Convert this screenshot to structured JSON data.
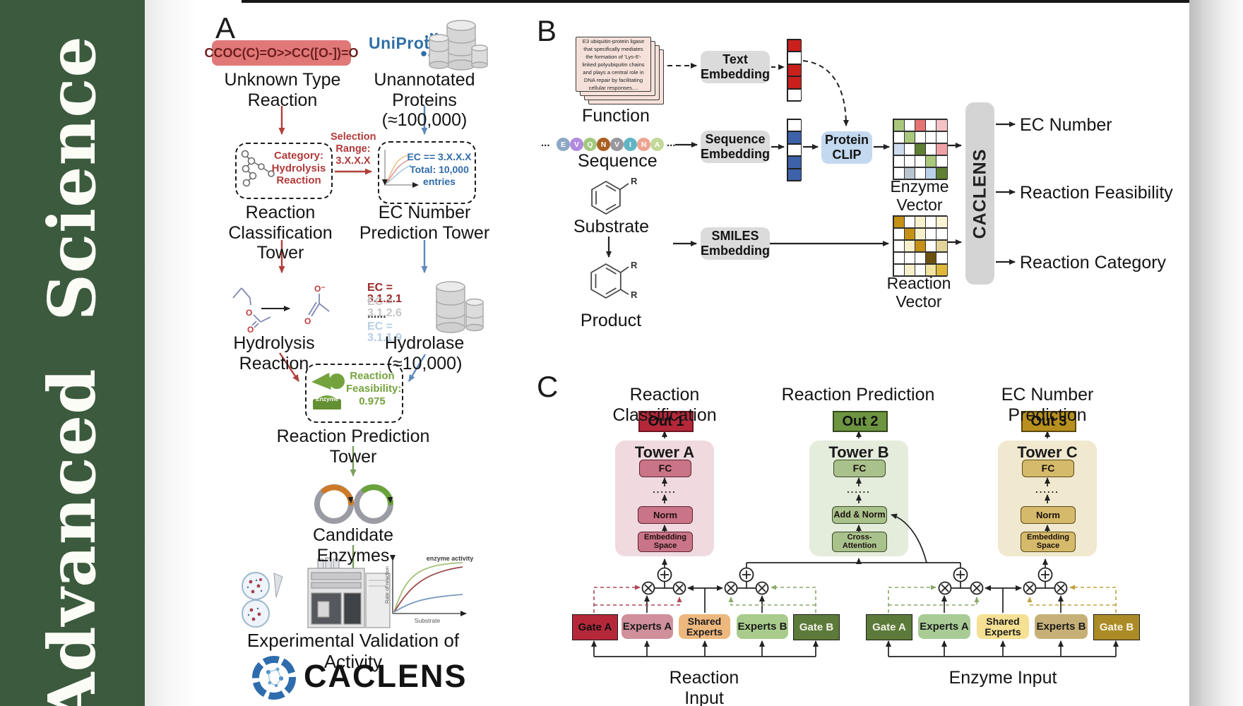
{
  "journal": "Advanced  Science",
  "palette": {
    "sidebarGreen": "#3b5a3e",
    "smilesBox": "#e17878",
    "embedGray": "#dbdbdb",
    "clipBlue": "#c3d9f0",
    "caclensBar": "#d4d4d4",
    "outRed": "#b5283a",
    "outGreen": "#6d9441",
    "outGold": "#b8901f",
    "towerABg": "#f0dadf",
    "towerAInner": "#ca7487",
    "towerBBg": "#e4ecdb",
    "towerBInner": "#a9c28c",
    "towerCBg": "#f0e9cf",
    "towerCInner": "#d4ba6a",
    "gateARed": "#b5283a",
    "expertsARose": "#cf8f9b",
    "sharedOrange": "#edb87e",
    "expertsBGreen": "#a9cc8c",
    "gateBGreen": "#5c7a3a",
    "gateAGreen": "#5c7a3a",
    "expertsAGreen": "#a9cc96",
    "sharedYellow": "#f5e093",
    "expertsBTan": "#c6b077",
    "gateBGold": "#ab8b25"
  },
  "panelA": {
    "label": "A",
    "smiles": "CCOC(C)=O>>CC([O-])=O",
    "unknownReaction": "Unknown Type\nReaction",
    "uniprot": "UniProt",
    "unannotated": "Unannotated\nProteins (≈100,000)",
    "categoryBox": "Category:\nHydrolysis\nReaction",
    "selection": "Selection\nRange:\n3.X.X.X",
    "ecBox": "EC == 3.X.X.X\nTotal: 10,000\nentries",
    "classificationTower": "Reaction\nClassification Tower",
    "ecTower": "EC Number\nPrediction Tower",
    "hydrolysis": "Hydrolysis Reaction",
    "ecList": [
      {
        "text": "EC = 3.1.2.1",
        "color": "#9b2727"
      },
      {
        "text": "EC = 3.1.2.6",
        "color": "#c6c6c6"
      },
      {
        "text": "......",
        "color": "#3a3a3a"
      },
      {
        "text": "EC = 3.1.1.9",
        "color": "#b7cfe6"
      }
    ],
    "hydrolase": "Hydrolase (≈10,000)",
    "enzymeBadge": "Enzyme",
    "feasibility": "Reaction\nFeasibility:\n0.975",
    "predictionTower": "Reaction Prediction Tower",
    "candidates": "Candidate Enzymes",
    "validation": "Experimental Validation of Activity",
    "plot": {
      "ylabel": "Rate of reaction",
      "xlabel": "Substrate",
      "annotation": "enzyme activity"
    },
    "brand": "CACLENS",
    "atoms": {
      "o": "O",
      "ominus": "O⁻"
    }
  },
  "panelB": {
    "label": "B",
    "functionCard": "E3 ubiquitin-protein ligase that specifically mediates the formation of 'Lys-6'-linked polyubiquitin chains and plays a central role in DNA repair by facilitating cellular responses....",
    "functionLabel": "Function",
    "ellipsisLeft": "...",
    "ellipsisRight": "...",
    "sequence": [
      {
        "letter": "E",
        "color": "#8da8c6"
      },
      {
        "letter": "V",
        "color": "#b28ade"
      },
      {
        "letter": "Q",
        "color": "#a2c87e"
      },
      {
        "letter": "N",
        "color": "#a85f22"
      },
      {
        "letter": "V",
        "color": "#97979d"
      },
      {
        "letter": "I",
        "color": "#63b4c5"
      },
      {
        "letter": "N",
        "color": "#eca493"
      },
      {
        "letter": "A",
        "color": "#c3d89a"
      }
    ],
    "sequenceLabel": "Sequence",
    "substrateLabel": "Substrate",
    "productLabel": "Product",
    "rLabel": "R",
    "textEmbedding": "Text\nEmbedding",
    "sequenceEmbedding": "Sequence\nEmbedding",
    "smilesEmbedding": "SMILES\nEmbedding",
    "proteinClip": "Protein\nCLIP",
    "textVector": [
      "#c9201d",
      "#ffffff",
      "#c9201d",
      "#c9201d",
      "#ffffff"
    ],
    "seqVector": [
      "#ffffff",
      "#3d62a9",
      "#ffffff",
      "#3d62a9",
      "#3d62a9"
    ],
    "enzymeGrid": [
      "#a9c87c",
      "#ffffff",
      "#e57373",
      "#ffffff",
      "#f4c2c6",
      "#ffffff",
      "#a9c87c",
      "#ffffff",
      "#ffffff",
      "#ffffff",
      "#ccdcee",
      "#ffffff",
      "#5f7f33",
      "#ffffff",
      "#f0a1a5",
      "#ffffff",
      "#ffffff",
      "#ffffff",
      "#a9c87c",
      "#ffffff",
      "#ffffff",
      "#b9c4cf",
      "#ffffff",
      "#b9d2ea",
      "#5f7f33"
    ],
    "reactionGrid": [
      "#c49016",
      "#ffffff",
      "#f7f0cc",
      "#ffffff",
      "#faf3d4",
      "#ffffff",
      "#c49016",
      "#f7f0cc",
      "#ffffff",
      "#ffffff",
      "#ffffff",
      "#f7f0cc",
      "#c49016",
      "#ffffff",
      "#e3d49a",
      "#ffffff",
      "#ffffff",
      "#ffffff",
      "#6b500e",
      "#ffffff",
      "#ffffff",
      "#f7f0cc",
      "#ffffff",
      "#f2e3a0",
      "#ddb83a"
    ],
    "enzymeVectorLabel": "Enzyme Vector",
    "reactionVectorLabel": "Reaction Vector",
    "caclens": "CACLENS",
    "outputs": [
      "EC Number",
      "Reaction Feasibility",
      "Reaction Category"
    ]
  },
  "panelC": {
    "label": "C",
    "titles": [
      "Reaction Classification",
      "Reaction Prediction",
      "EC Number Prediction"
    ],
    "outs": [
      "Out 1",
      "Out 2",
      "Out 3"
    ],
    "towers": [
      {
        "name": "Tower A",
        "fc": "FC",
        "dots": "......",
        "mid": "Norm",
        "bottom": "Embedding\nSpace"
      },
      {
        "name": "Tower B",
        "fc": "FC",
        "dots": "......",
        "mid": "Add & Norm",
        "bottom": "Cross-\nAttention"
      },
      {
        "name": "Tower C",
        "fc": "FC",
        "dots": "......",
        "mid": "Norm",
        "bottom": "Embedding\nSpace"
      }
    ],
    "groups": [
      {
        "label": "Reaction Input",
        "boxes": [
          "Gate A",
          "Experts A",
          "Shared\nExperts",
          "Experts B",
          "Gate B"
        ]
      },
      {
        "label": "Enzyme Input",
        "boxes": [
          "Gate A",
          "Experts A",
          "Shared\nExperts",
          "Experts B",
          "Gate B"
        ]
      }
    ]
  }
}
